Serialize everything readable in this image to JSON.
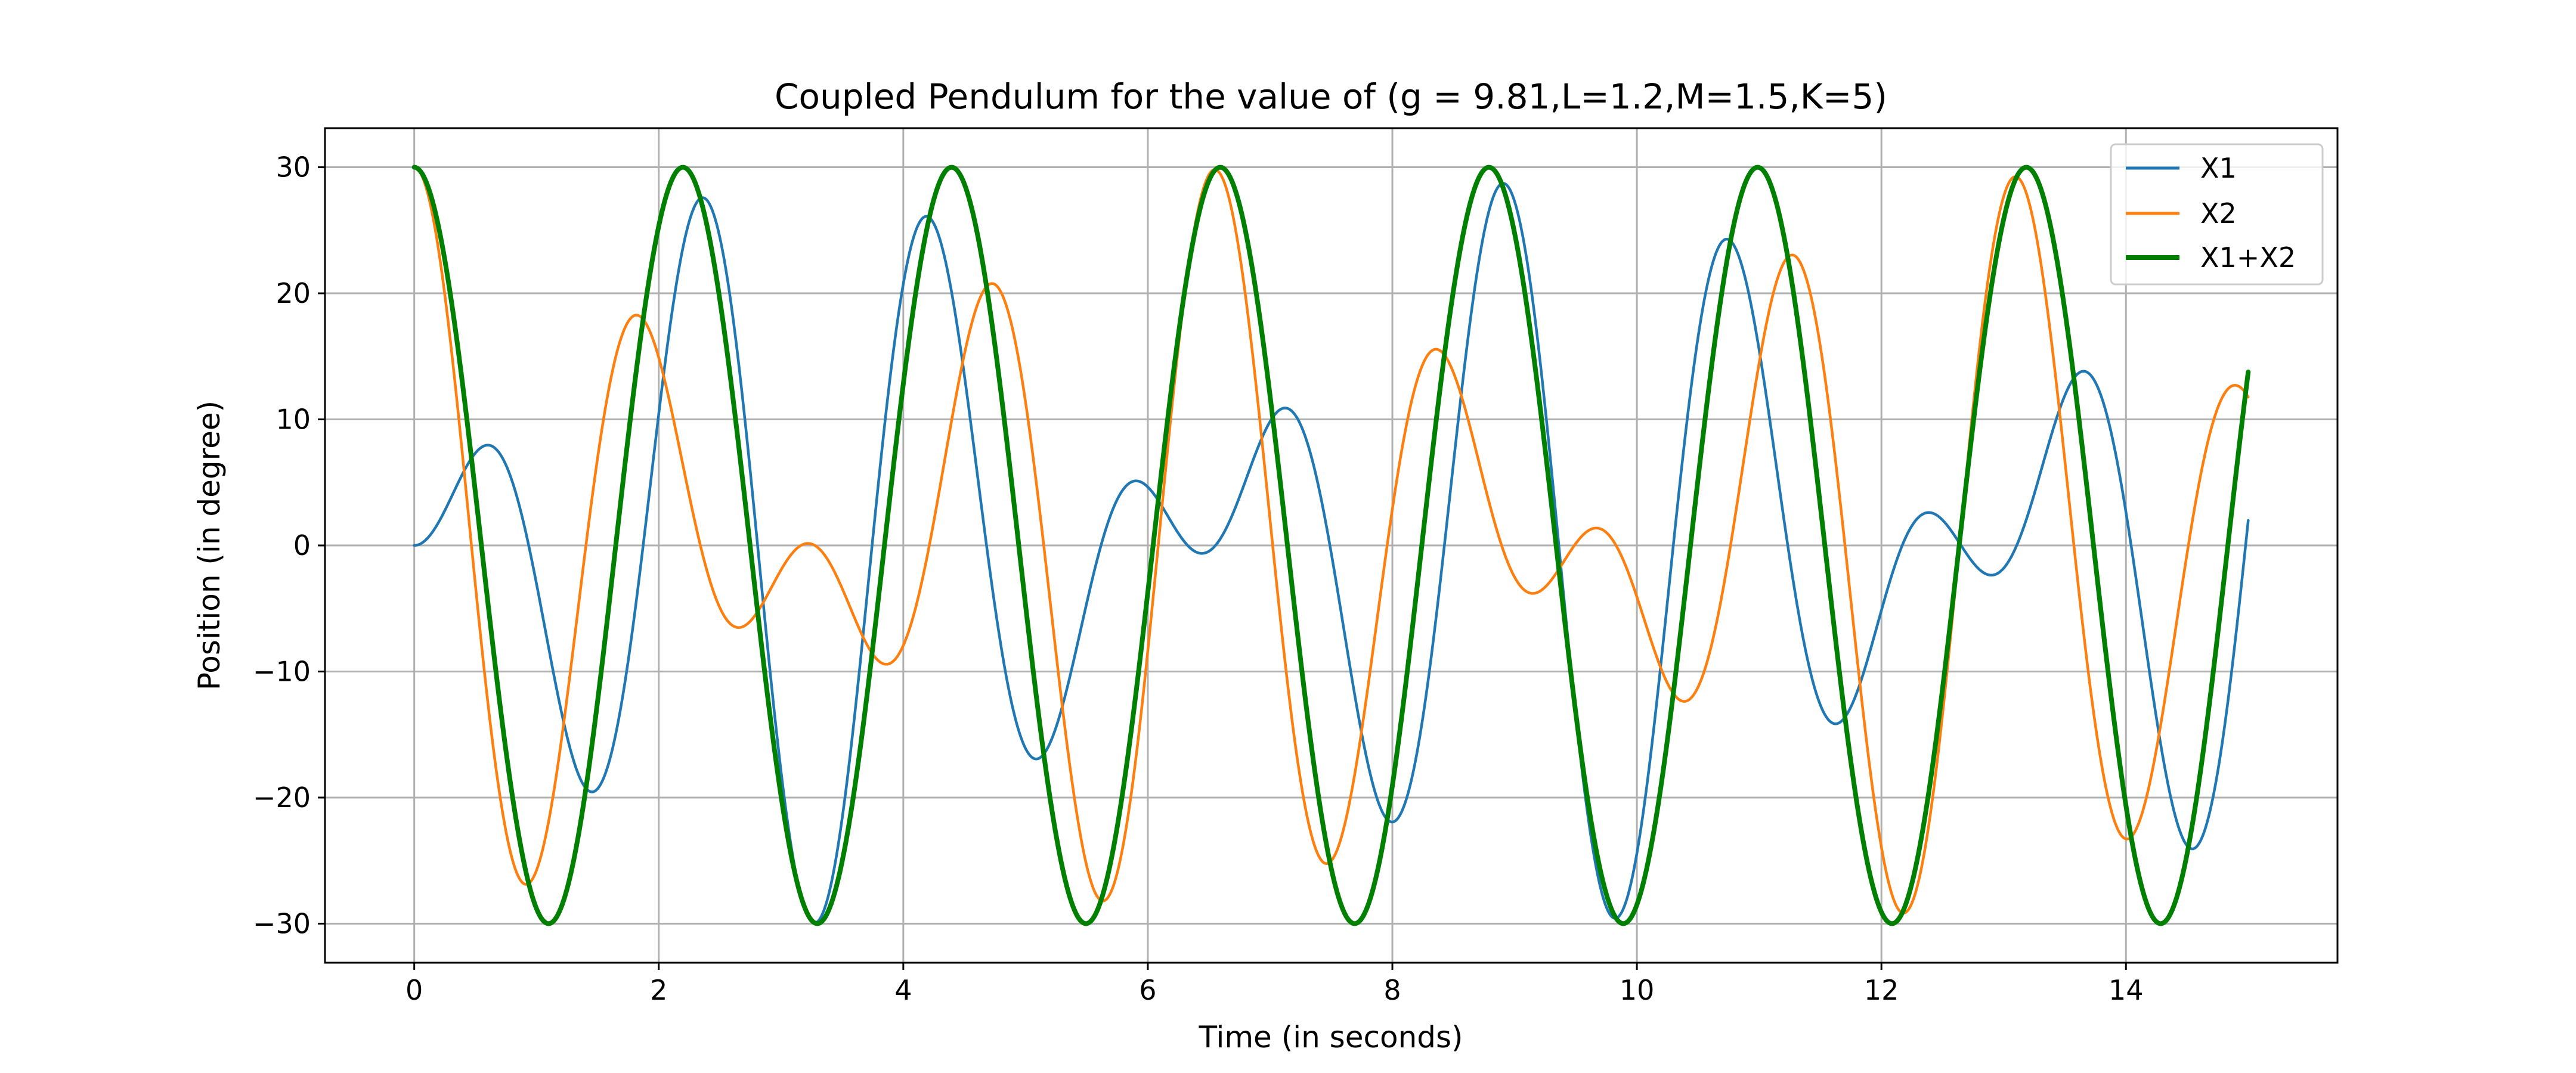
{
  "chart_data": {
    "type": "line",
    "title": "Coupled Pendulum for the value of (g = 9.81,L=1.2,M=1.5,K=5)",
    "xlabel": "Time (in seconds)",
    "ylabel": "Position (in degree)",
    "xlim": [
      -0.73,
      15.73
    ],
    "ylim": [
      -33.1,
      33.1
    ],
    "xticks": [
      0,
      2,
      4,
      6,
      8,
      10,
      12,
      14
    ],
    "xtick_labels": [
      "0",
      "2",
      "4",
      "6",
      "8",
      "10",
      "12",
      "14"
    ],
    "yticks": [
      -30,
      -20,
      -10,
      0,
      10,
      20,
      30
    ],
    "ytick_labels": [
      "−30",
      "−20",
      "−10",
      "0",
      "10",
      "20",
      "30"
    ],
    "grid": true,
    "legend_position": "top-right",
    "model": {
      "g": 9.81,
      "L": 1.2,
      "M": 1.5,
      "K": 5,
      "amplitude_deg": 30,
      "t_start": 0,
      "t_end": 15,
      "samples": 1200
    },
    "series": [
      {
        "name": "X1",
        "color": "#1f77b4",
        "formula": "A*(cos(w1 t) - cos(w2 t))/2"
      },
      {
        "name": "X2",
        "color": "#ff7f0e",
        "formula": "A*(cos(w1 t) + cos(w2 t))/2"
      },
      {
        "name": "X1+X2",
        "color": "#008000",
        "formula": "A*cos(w1 t)"
      }
    ]
  }
}
